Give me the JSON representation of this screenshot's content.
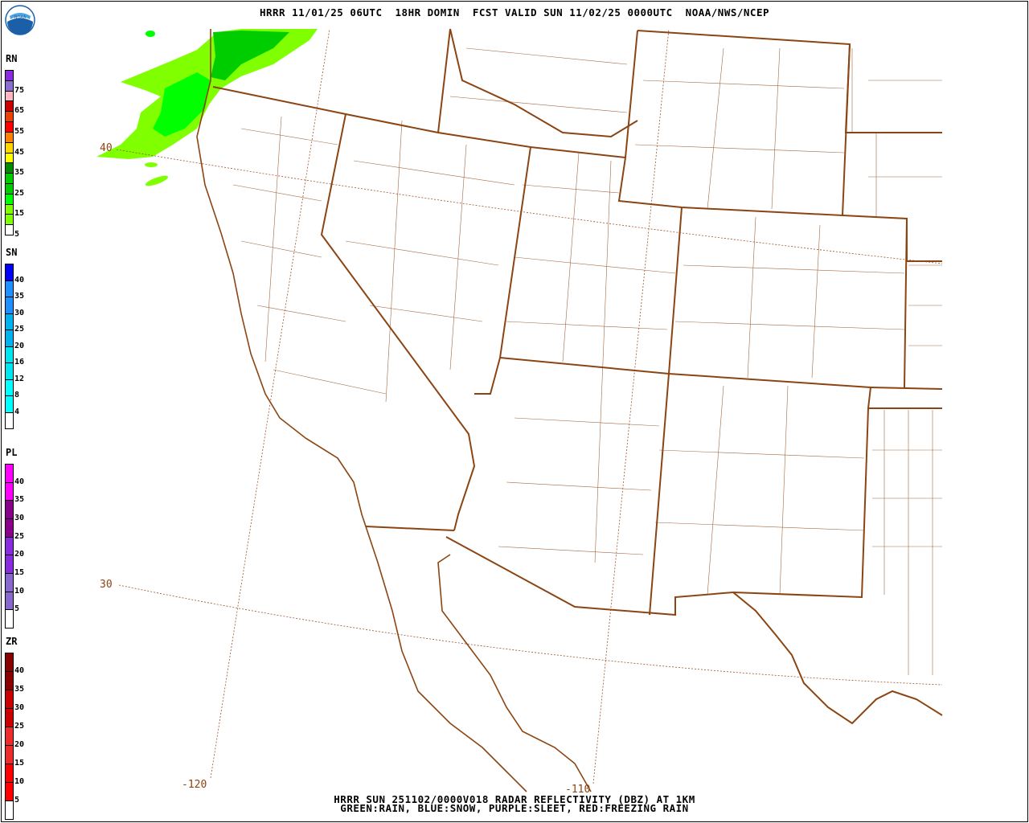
{
  "header": {
    "title": "HRRR 11/01/25 06UTC  18HR DOMIN  FCST VALID SUN 11/02/25 0000UTC  NOAA/NWS/NCEP",
    "logo_text": "NOAA"
  },
  "footer": {
    "line1": "HRRR SUN 251102/0000V018 RADAR REFLECTIVITY (DBZ) AT 1KM",
    "line2": "GREEN:RAIN, BLUE:SNOW, PURPLE:SLEET, RED:FREEZING RAIN"
  },
  "legends": [
    {
      "label": "RN",
      "colors": [
        "#8a2be2",
        "#8a6fd0",
        "#ffb6c1",
        "#cd0000",
        "#ee4000",
        "#ff0000",
        "#ff7f00",
        "#ffd700",
        "#ffff00",
        "#008b00",
        "#00cd00",
        "#00cd00",
        "#00ff00",
        "#7fff00",
        "#7fff00",
        "#ffffff"
      ],
      "ticks": [
        "75",
        "65",
        "55",
        "45",
        "35",
        "25",
        "15",
        "5"
      ],
      "tick_every": 2
    },
    {
      "label": "SN",
      "colors": [
        "#0000ff",
        "#1e90ff",
        "#1e90ff",
        "#00b2ee",
        "#00b2ee",
        "#00e5ee",
        "#00e5ee",
        "#00ffff",
        "#00ffff",
        "#ffffff"
      ],
      "ticks": [
        "40",
        "35",
        "30",
        "25",
        "20",
        "16",
        "12",
        "8",
        "4"
      ],
      "tick_every": 1
    },
    {
      "label": "PL",
      "colors": [
        "#ff00ff",
        "#ff00ff",
        "#8b008b",
        "#8b008b",
        "#8a2be2",
        "#8a2be2",
        "#8968cd",
        "#8968cd",
        "#ffffff"
      ],
      "ticks": [
        "40",
        "35",
        "30",
        "25",
        "20",
        "15",
        "10",
        "5"
      ],
      "tick_every": 1
    },
    {
      "label": "ZR",
      "colors": [
        "#8b0000",
        "#8b0000",
        "#cd0000",
        "#cd0000",
        "#ee2c2c",
        "#ee2c2c",
        "#ff0000",
        "#ff0000",
        "#ffffff"
      ],
      "ticks": [
        "40",
        "35",
        "30",
        "25",
        "20",
        "15",
        "10",
        "5"
      ],
      "tick_every": 1
    }
  ],
  "map": {
    "boundary_color": "#8b4513",
    "grid_labels": {
      "lat40": "40",
      "lat30": "30",
      "lon120": "-120",
      "lon110": "-110"
    }
  }
}
